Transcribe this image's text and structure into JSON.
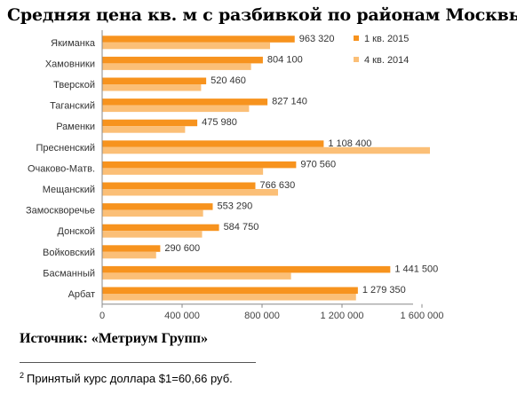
{
  "title": "Средняя цена кв. м с разбивкой по районам Москвы",
  "source": "Источник: «Метриум Групп»",
  "footnote": {
    "mark": "2",
    "text": "Принятый курс доллара $1=60,66 руб."
  },
  "chart_data": {
    "type": "bar",
    "orientation": "horizontal",
    "title": "Средняя цена кв. м с разбивкой по районам Москвы",
    "categories": [
      "Якиманка",
      "Хамовники",
      "Тверской",
      "Таганский",
      "Раменки",
      "Пресненский",
      "Очаково-Матв.",
      "Мещанский",
      "Замоскворечье",
      "Донской",
      "Войковский",
      "Басманный",
      "Арбат"
    ],
    "series": [
      {
        "name": "1 кв. 2015",
        "color": "#F7931E",
        "values": [
          963320,
          804100,
          520460,
          827140,
          475980,
          1108400,
          970560,
          766630,
          553290,
          584750,
          290600,
          1441500,
          1279350
        ],
        "labels": [
          "963 320",
          "804 100",
          "520 460",
          "827 140",
          "475 980",
          "1 108 400",
          "970 560",
          "766 630",
          "553 290",
          "584 750",
          "290 600",
          "1 441 500",
          "1 279 350"
        ]
      },
      {
        "name": "4 кв. 2014",
        "color": "#FBBF77",
        "values": [
          840000,
          745000,
          495000,
          735000,
          415000,
          1640000,
          805000,
          880000,
          505000,
          500000,
          270000,
          945000,
          1270000
        ]
      }
    ],
    "x_ticks": [
      0,
      400000,
      800000,
      1200000,
      1600000
    ],
    "x_tick_labels": [
      "0",
      "400 000",
      "800 000",
      "1 200 000",
      "1 600 000"
    ],
    "xlim": [
      0,
      1800000
    ],
    "grid": false,
    "legend_position": "top-right"
  }
}
